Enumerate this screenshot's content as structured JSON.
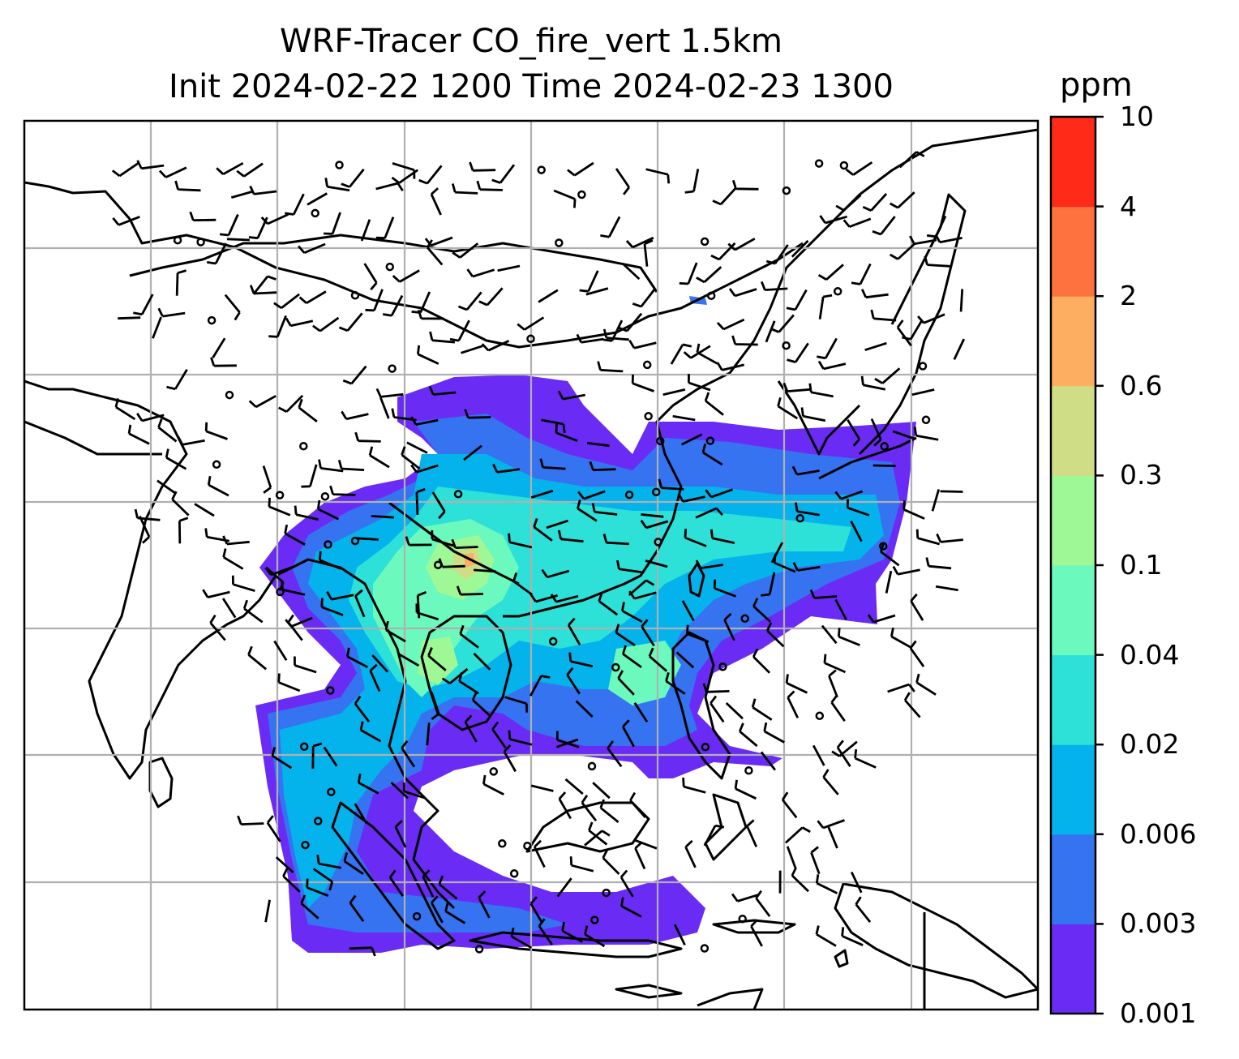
{
  "title": {
    "line1": "WRF-Tracer CO_fire_vert 1.5km",
    "line2": "Init 2024-02-22 1200 Time 2024-02-23 1300"
  },
  "colorbar": {
    "unit": "ppm",
    "ticks": [
      "0.001",
      "0.003",
      "0.006",
      "0.02",
      "0.04",
      "0.1",
      "0.3",
      "0.6",
      "2",
      "4",
      "10"
    ],
    "colors": [
      "#6a2cf5",
      "#3573f0",
      "#04b3eb",
      "#2de0d8",
      "#6cf9be",
      "#9ef896",
      "#cfde86",
      "#fdae61",
      "#fe7240",
      "#ff2a17"
    ]
  },
  "map": {
    "gridlines": true,
    "coastline_color": "#000000",
    "gridline_color": "#b0b0b0",
    "field": "CO_fire_vert tracer concentration with wind barbs",
    "land_features": [
      "coastlines",
      "country borders"
    ]
  }
}
